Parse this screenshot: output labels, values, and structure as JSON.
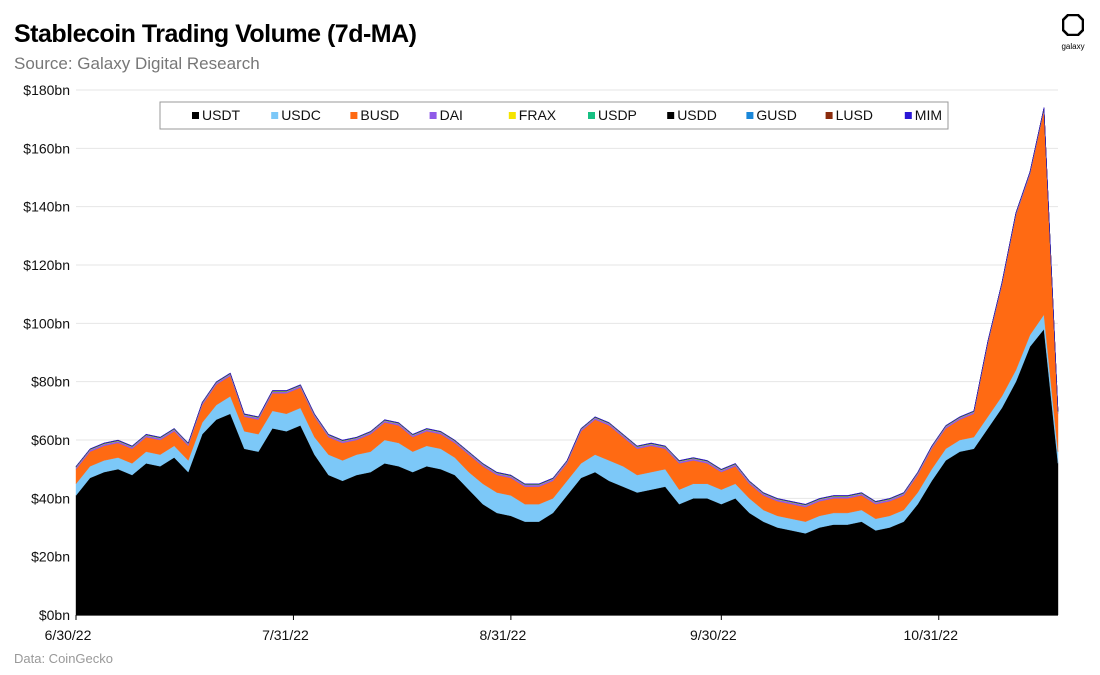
{
  "header": {
    "title": "Stablecoin Trading Volume (7d-MA)",
    "subtitle": "Source: Galaxy Digital Research"
  },
  "footer": {
    "note": "Data: CoinGecko"
  },
  "logo": {
    "text": "galaxy",
    "icon": "galaxy-logo-icon"
  },
  "chart_data": {
    "type": "area",
    "stacked": true,
    "title": "Stablecoin Trading Volume (7d-MA)",
    "xlabel": "",
    "ylabel": "",
    "ylim": [
      0,
      180
    ],
    "yticks": [
      0,
      20,
      40,
      60,
      80,
      100,
      120,
      140,
      160,
      180
    ],
    "ytick_labels": [
      "$0bn",
      "$20bn",
      "$40bn",
      "$60bn",
      "$80bn",
      "$100bn",
      "$120bn",
      "$140bn",
      "$160bn",
      "$180bn"
    ],
    "xlim_days": [
      0,
      140
    ],
    "xticks_days": [
      0,
      31,
      62,
      92,
      123
    ],
    "xtick_labels": [
      "6/30/22",
      "7/31/22",
      "8/31/22",
      "9/30/22",
      "10/31/22"
    ],
    "grid": true,
    "legend_position": "top",
    "x_days": [
      0,
      2,
      4,
      6,
      8,
      10,
      12,
      14,
      16,
      18,
      20,
      22,
      24,
      26,
      28,
      30,
      32,
      34,
      36,
      38,
      40,
      42,
      44,
      46,
      48,
      50,
      52,
      54,
      56,
      58,
      60,
      62,
      64,
      66,
      68,
      70,
      72,
      74,
      76,
      78,
      80,
      82,
      84,
      86,
      88,
      90,
      92,
      94,
      96,
      98,
      100,
      102,
      104,
      106,
      108,
      110,
      112,
      114,
      116,
      118,
      120,
      122,
      124,
      126,
      128,
      130,
      132,
      134,
      136,
      138,
      140
    ],
    "series": [
      {
        "name": "USDT",
        "color": "#000000",
        "values": [
          41,
          47,
          49,
          50,
          48,
          52,
          51,
          54,
          49,
          62,
          67,
          69,
          57,
          56,
          64,
          63,
          65,
          55,
          48,
          46,
          48,
          49,
          52,
          51,
          49,
          51,
          50,
          48,
          43,
          38,
          35,
          34,
          32,
          32,
          35,
          41,
          47,
          49,
          46,
          44,
          42,
          43,
          44,
          38,
          40,
          40,
          38,
          40,
          35,
          32,
          30,
          29,
          28,
          30,
          31,
          31,
          32,
          29,
          30,
          32,
          38,
          46,
          53,
          56,
          57,
          64,
          71,
          80,
          92,
          98,
          52
        ]
      },
      {
        "name": "USDC",
        "color": "#7cc8f8",
        "values": [
          4,
          4,
          4,
          4,
          4,
          4,
          4,
          4,
          4,
          4,
          5,
          6,
          6,
          6,
          6,
          6,
          6,
          6,
          7,
          7,
          7,
          7,
          8,
          8,
          7,
          7,
          7,
          6,
          6,
          7,
          7,
          7,
          6,
          6,
          5,
          5,
          5,
          6,
          7,
          7,
          6,
          6,
          6,
          5,
          5,
          5,
          5,
          5,
          5,
          4,
          4,
          4,
          4,
          4,
          4,
          4,
          4,
          4,
          4,
          4,
          4,
          4,
          4,
          4,
          4,
          4,
          4,
          4,
          4,
          5,
          4
        ]
      },
      {
        "name": "BUSD",
        "color": "#ff6a13",
        "values": [
          5,
          5,
          5,
          5,
          5,
          5,
          5,
          5,
          5,
          6,
          7,
          7,
          5,
          5,
          6,
          7,
          7,
          7,
          6,
          6,
          5,
          6,
          6,
          6,
          5,
          5,
          5,
          5,
          6,
          6,
          6,
          6,
          6,
          6,
          6,
          6,
          11,
          12,
          12,
          10,
          9,
          9,
          7,
          9,
          8,
          7,
          6,
          6,
          5,
          5,
          5,
          5,
          5,
          5,
          5,
          5,
          5,
          5,
          5,
          5,
          6,
          7,
          7,
          7,
          8,
          25,
          38,
          53,
          55,
          70,
          13
        ]
      },
      {
        "name": "DAI",
        "color": "#8f5be8",
        "values": [
          0.6,
          0.6,
          0.6,
          0.6,
          0.6,
          0.6,
          0.6,
          0.6,
          0.6,
          0.6,
          0.6,
          0.6,
          0.6,
          0.6,
          0.6,
          0.6,
          0.6,
          0.6,
          0.6,
          0.6,
          0.6,
          0.6,
          0.6,
          0.6,
          0.6,
          0.6,
          0.6,
          0.6,
          0.6,
          0.6,
          0.6,
          0.6,
          0.6,
          0.6,
          0.6,
          0.6,
          0.6,
          0.6,
          0.6,
          0.6,
          0.6,
          0.6,
          0.6,
          0.6,
          0.6,
          0.6,
          0.6,
          0.6,
          0.6,
          0.6,
          0.6,
          0.6,
          0.6,
          0.6,
          0.6,
          0.6,
          0.6,
          0.6,
          0.6,
          0.6,
          0.6,
          0.6,
          0.6,
          0.6,
          0.6,
          0.6,
          0.6,
          0.6,
          0.6,
          0.6,
          0.6
        ]
      },
      {
        "name": "FRAX",
        "color": "#f5e400",
        "values": [
          0.1,
          0.1,
          0.1,
          0.1,
          0.1,
          0.1,
          0.1,
          0.1,
          0.1,
          0.1,
          0.1,
          0.1,
          0.1,
          0.1,
          0.1,
          0.1,
          0.1,
          0.1,
          0.1,
          0.1,
          0.1,
          0.1,
          0.1,
          0.1,
          0.1,
          0.1,
          0.1,
          0.1,
          0.1,
          0.1,
          0.1,
          0.1,
          0.1,
          0.1,
          0.1,
          0.1,
          0.1,
          0.1,
          0.1,
          0.1,
          0.1,
          0.1,
          0.1,
          0.1,
          0.1,
          0.1,
          0.1,
          0.1,
          0.1,
          0.1,
          0.1,
          0.1,
          0.1,
          0.1,
          0.1,
          0.1,
          0.1,
          0.1,
          0.1,
          0.1,
          0.1,
          0.1,
          0.1,
          0.1,
          0.1,
          0.1,
          0.1,
          0.1,
          0.1,
          0.1,
          0.1
        ]
      },
      {
        "name": "USDP",
        "color": "#17c083",
        "values": [
          0.1,
          0.1,
          0.1,
          0.1,
          0.1,
          0.1,
          0.1,
          0.1,
          0.1,
          0.1,
          0.1,
          0.1,
          0.1,
          0.1,
          0.1,
          0.1,
          0.1,
          0.1,
          0.1,
          0.1,
          0.1,
          0.1,
          0.1,
          0.1,
          0.1,
          0.1,
          0.1,
          0.1,
          0.1,
          0.1,
          0.1,
          0.1,
          0.1,
          0.1,
          0.1,
          0.1,
          0.1,
          0.1,
          0.1,
          0.1,
          0.1,
          0.1,
          0.1,
          0.1,
          0.1,
          0.1,
          0.1,
          0.1,
          0.1,
          0.1,
          0.1,
          0.1,
          0.1,
          0.1,
          0.1,
          0.1,
          0.1,
          0.1,
          0.1,
          0.1,
          0.1,
          0.1,
          0.1,
          0.1,
          0.1,
          0.1,
          0.1,
          0.1,
          0.1,
          0.1,
          0.1
        ]
      },
      {
        "name": "USDD",
        "color": "#000000",
        "values": [
          0.1,
          0.1,
          0.1,
          0.1,
          0.1,
          0.1,
          0.1,
          0.1,
          0.1,
          0.1,
          0.1,
          0.1,
          0.1,
          0.1,
          0.1,
          0.1,
          0.1,
          0.1,
          0.1,
          0.1,
          0.1,
          0.1,
          0.1,
          0.1,
          0.1,
          0.1,
          0.1,
          0.1,
          0.1,
          0.1,
          0.1,
          0.1,
          0.1,
          0.1,
          0.1,
          0.1,
          0.1,
          0.1,
          0.1,
          0.1,
          0.1,
          0.1,
          0.1,
          0.1,
          0.1,
          0.1,
          0.1,
          0.1,
          0.1,
          0.1,
          0.1,
          0.1,
          0.1,
          0.1,
          0.1,
          0.1,
          0.1,
          0.1,
          0.1,
          0.1,
          0.1,
          0.1,
          0.1,
          0.1,
          0.1,
          0.1,
          0.1,
          0.1,
          0.1,
          0.1,
          0.1
        ]
      },
      {
        "name": "GUSD",
        "color": "#1a87d9",
        "values": [
          0,
          0,
          0,
          0,
          0,
          0,
          0,
          0,
          0,
          0,
          0,
          0,
          0,
          0,
          0,
          0,
          0,
          0,
          0,
          0,
          0,
          0,
          0,
          0,
          0,
          0,
          0,
          0,
          0,
          0,
          0,
          0,
          0,
          0,
          0,
          0,
          0,
          0,
          0,
          0,
          0,
          0,
          0,
          0,
          0,
          0,
          0,
          0,
          0,
          0,
          0,
          0,
          0,
          0,
          0,
          0,
          0,
          0,
          0,
          0,
          0,
          0,
          0,
          0,
          0,
          0,
          0,
          0,
          0,
          0,
          0
        ]
      },
      {
        "name": "LUSD",
        "color": "#8a2b0c",
        "values": [
          0,
          0,
          0,
          0,
          0,
          0,
          0,
          0,
          0,
          0,
          0,
          0,
          0,
          0,
          0,
          0,
          0,
          0,
          0,
          0,
          0,
          0,
          0,
          0,
          0,
          0,
          0,
          0,
          0,
          0,
          0,
          0,
          0,
          0,
          0,
          0,
          0,
          0,
          0,
          0,
          0,
          0,
          0,
          0,
          0,
          0,
          0,
          0,
          0,
          0,
          0,
          0,
          0,
          0,
          0,
          0,
          0,
          0,
          0,
          0,
          0,
          0,
          0,
          0,
          0,
          0,
          0,
          0,
          0,
          0,
          0
        ]
      },
      {
        "name": "MIM",
        "color": "#2a17d6",
        "values": [
          0.1,
          0.1,
          0.1,
          0.1,
          0.1,
          0.1,
          0.1,
          0.1,
          0.1,
          0.1,
          0.1,
          0.1,
          0.1,
          0.1,
          0.1,
          0.1,
          0.1,
          0.1,
          0.1,
          0.1,
          0.1,
          0.1,
          0.1,
          0.1,
          0.1,
          0.1,
          0.1,
          0.1,
          0.1,
          0.1,
          0.1,
          0.1,
          0.1,
          0.1,
          0.1,
          0.1,
          0.1,
          0.1,
          0.1,
          0.1,
          0.1,
          0.1,
          0.1,
          0.1,
          0.1,
          0.1,
          0.1,
          0.1,
          0.1,
          0.1,
          0.1,
          0.1,
          0.1,
          0.1,
          0.1,
          0.1,
          0.1,
          0.1,
          0.1,
          0.1,
          0.1,
          0.1,
          0.1,
          0.1,
          0.1,
          0.1,
          0.1,
          0.1,
          0.1,
          0.1,
          0.1
        ]
      }
    ]
  }
}
